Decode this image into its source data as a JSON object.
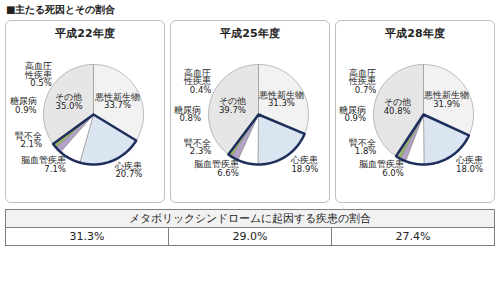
{
  "title": "■主たる死因とその割合",
  "chart_data": [
    {
      "type": "pie",
      "title": "平成22年度",
      "categories": [
        "悪性新生物",
        "心疾患",
        "脳血管疾患",
        "腎不全",
        "糖尿病",
        "高血圧性疾患",
        "その他"
      ],
      "values": [
        33.7,
        20.7,
        7.1,
        2.1,
        0.9,
        0.5,
        35.0
      ],
      "value_labels": [
        "33.7%",
        "20.7%",
        "7.1%",
        "2.1%",
        "0.9%",
        "0.5%",
        "35.0%"
      ],
      "colors": [
        "#f2f2f2",
        "#dbe5f1",
        "#ffffff",
        "#b3a2c7",
        "#9bbb59",
        "#d7e4bd",
        "#e6e6e6"
      ],
      "data_labels": true
    },
    {
      "type": "pie",
      "title": "平成25年度",
      "categories": [
        "悪性新生物",
        "心疾患",
        "脳血管疾患",
        "腎不全",
        "糖尿病",
        "高血圧性疾患",
        "その他"
      ],
      "values": [
        31.3,
        18.9,
        6.6,
        2.3,
        0.8,
        0.4,
        39.7
      ],
      "value_labels": [
        "31.3%",
        "18.9%",
        "6.6%",
        "2.3%",
        "0.8%",
        "0.4%",
        "39.7%"
      ],
      "colors": [
        "#f2f2f2",
        "#dbe5f1",
        "#ffffff",
        "#b3a2c7",
        "#9bbb59",
        "#d7e4bd",
        "#e6e6e6"
      ],
      "data_labels": true
    },
    {
      "type": "pie",
      "title": "平成28年度",
      "categories": [
        "悪性新生物",
        "心疾患",
        "脳血管疾患",
        "腎不全",
        "糖尿病",
        "高血圧性疾患",
        "その他"
      ],
      "values": [
        31.9,
        18.0,
        6.0,
        1.8,
        0.9,
        0.7,
        40.8
      ],
      "value_labels": [
        "31.9%",
        "18.0%",
        "6.0%",
        "1.8%",
        "0.9%",
        "0.7%",
        "40.8%"
      ],
      "colors": [
        "#f2f2f2",
        "#dbe5f1",
        "#ffffff",
        "#b3a2c7",
        "#9bbb59",
        "#d7e4bd",
        "#e6e6e6"
      ],
      "data_labels": true
    }
  ],
  "table": {
    "header": "メタボリックシンドロームに起因する疾患の割合",
    "cells": [
      "31.3%",
      "29.0%",
      "27.4%"
    ]
  }
}
